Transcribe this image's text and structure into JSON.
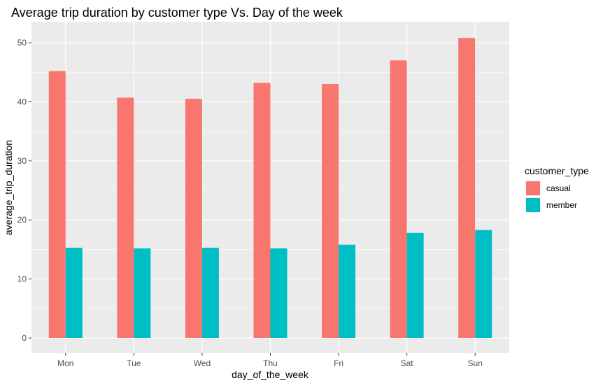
{
  "chart_data": {
    "type": "bar",
    "title": "Average trip duration by customer type Vs. Day of the week",
    "xlabel": "day_of_the_week",
    "ylabel": "average_trip_duration",
    "categories": [
      "Mon",
      "Tue",
      "Wed",
      "Thu",
      "Fri",
      "Sat",
      "Sun"
    ],
    "series": [
      {
        "name": "casual",
        "color": "#F8766D",
        "values": [
          45.2,
          40.7,
          40.5,
          43.2,
          43.0,
          47.0,
          50.8
        ]
      },
      {
        "name": "member",
        "color": "#00BFC4",
        "values": [
          15.3,
          15.2,
          15.3,
          15.2,
          15.8,
          17.8,
          18.3
        ]
      }
    ],
    "ylim": [
      0,
      52.5
    ],
    "yticks": [
      0,
      10,
      20,
      30,
      40,
      50
    ],
    "ytick_labels": [
      "0",
      "10",
      "20",
      "30",
      "40",
      "50"
    ],
    "grid": true,
    "legend": {
      "title": "customer_type",
      "position": "right"
    },
    "background": "#EBEBEB"
  }
}
